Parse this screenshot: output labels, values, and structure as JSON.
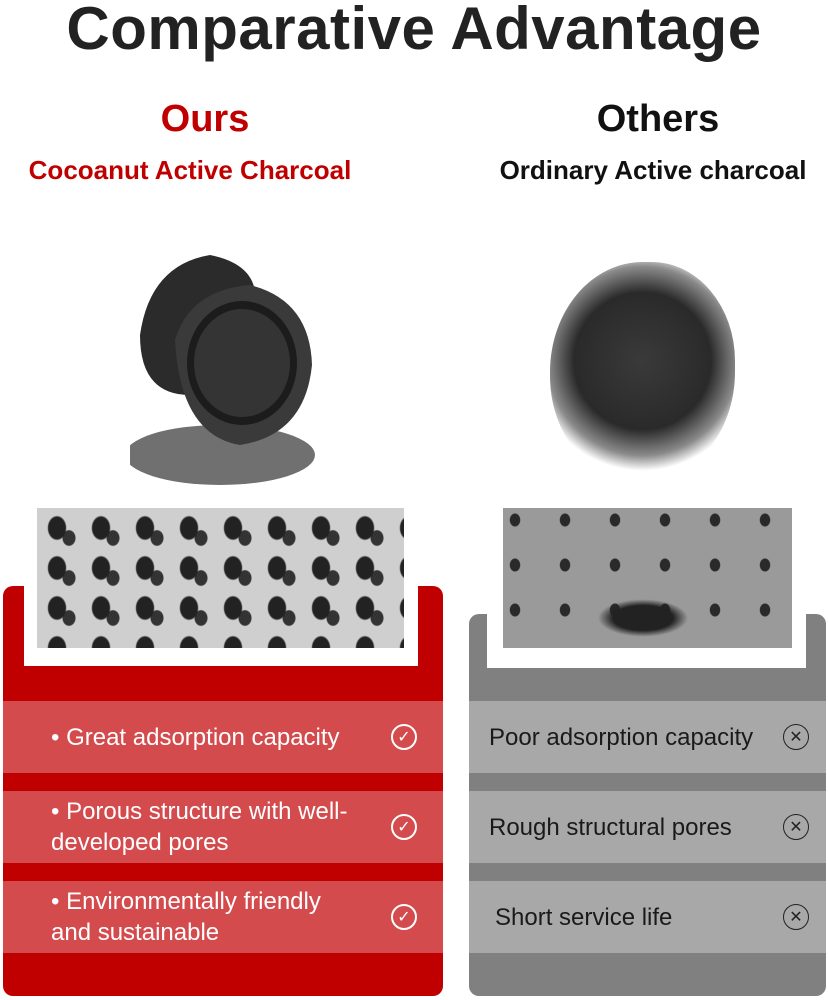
{
  "title": "Comparative Advantage",
  "ours": {
    "heading": "Ours",
    "subtitle": "Cocoanut Active Charcoal",
    "color": "#c00000",
    "features": [
      "• Great adsorption capacity",
      "• Porous structure with well-developed pores",
      "• Environmentally friendly and sustainable"
    ],
    "icon": "check-circle-icon"
  },
  "others": {
    "heading": "Others",
    "subtitle": "Ordinary Active charcoal",
    "color": "#808080",
    "features": [
      "Poor adsorption capacity",
      "Rough structural pores",
      "Short service life"
    ],
    "icon": "x-circle-icon"
  }
}
